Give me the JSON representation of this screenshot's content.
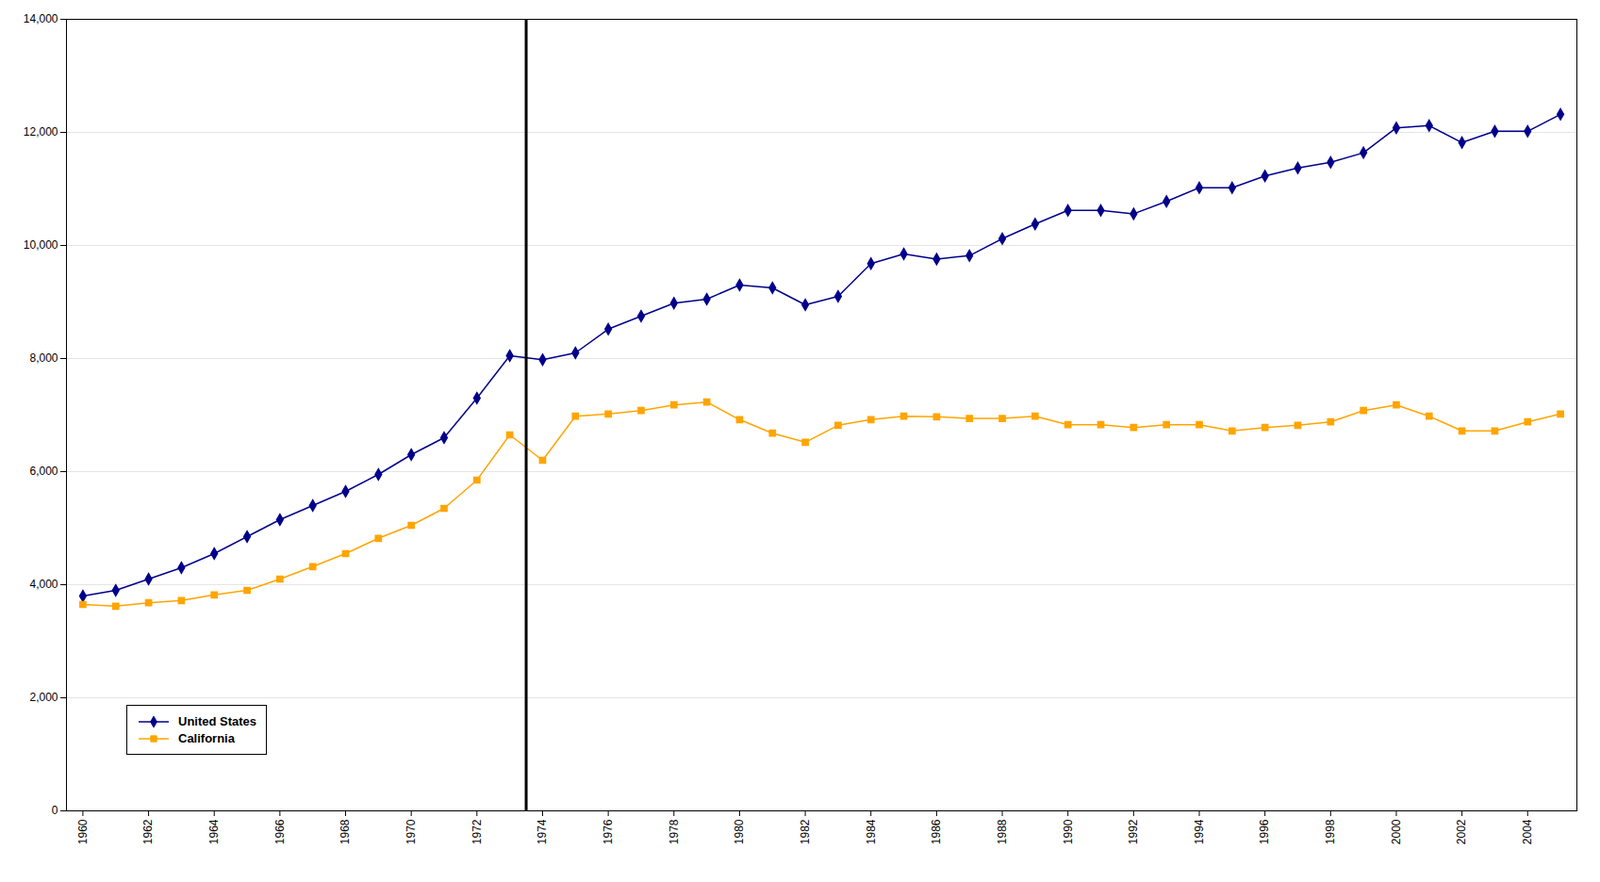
{
  "chart_data": {
    "type": "line",
    "x": [
      1960,
      1961,
      1962,
      1963,
      1964,
      1965,
      1966,
      1967,
      1968,
      1969,
      1970,
      1971,
      1972,
      1973,
      1974,
      1975,
      1976,
      1977,
      1978,
      1979,
      1980,
      1981,
      1982,
      1983,
      1984,
      1985,
      1986,
      1987,
      1988,
      1989,
      1990,
      1991,
      1992,
      1993,
      1994,
      1995,
      1996,
      1997,
      1998,
      1999,
      2000,
      2001,
      2002,
      2003,
      2004,
      2005
    ],
    "series": [
      {
        "name": "United States",
        "color": "#00008B",
        "marker": "diamond",
        "values": [
          3800,
          3900,
          4100,
          4300,
          4550,
          4850,
          5150,
          5400,
          5650,
          5950,
          6300,
          6600,
          7300,
          8050,
          7980,
          8100,
          8520,
          8750,
          8980,
          9050,
          9300,
          9250,
          8950,
          9100,
          9680,
          9850,
          9760,
          9820,
          10120,
          10380,
          10620,
          10620,
          10560,
          10780,
          11020,
          11020,
          11230,
          11370,
          11470,
          11640,
          12080,
          12120,
          11820,
          12020,
          12020,
          12320
        ]
      },
      {
        "name": "California",
        "color": "#FFA500",
        "marker": "square",
        "values": [
          3650,
          3620,
          3680,
          3720,
          3820,
          3900,
          4100,
          4320,
          4550,
          4820,
          5050,
          5350,
          5850,
          6650,
          6200,
          6980,
          7020,
          7080,
          7180,
          7230,
          6920,
          6680,
          6520,
          6820,
          6920,
          6980,
          6970,
          6940,
          6940,
          6980,
          6830,
          6830,
          6780,
          6830,
          6830,
          6720,
          6780,
          6820,
          6880,
          7080,
          7180,
          6980,
          6720,
          6720,
          6880,
          7020
        ]
      }
    ],
    "vline": {
      "x": 1973.5,
      "color": "#000000"
    },
    "xlim": [
      1959.5,
      2005.5
    ],
    "xticks": [
      1960,
      1962,
      1964,
      1966,
      1968,
      1970,
      1972,
      1974,
      1976,
      1978,
      1980,
      1982,
      1984,
      1986,
      1988,
      1990,
      1992,
      1994,
      1996,
      1998,
      2000,
      2002,
      2004
    ],
    "ylim": [
      0,
      14000
    ],
    "yticks": [
      0,
      {
        "value": 2000,
        "label": "2,000"
      },
      {
        "value": 4000,
        "label": "4,000"
      },
      {
        "value": 6000,
        "label": "6,000"
      },
      {
        "value": 8000,
        "label": "8,000"
      },
      {
        "value": 10000,
        "label": "10,000"
      },
      {
        "value": 12000,
        "label": "12,000"
      },
      {
        "value": 14000,
        "label": "14,000"
      }
    ],
    "grid": "y",
    "legend": "lower left"
  }
}
